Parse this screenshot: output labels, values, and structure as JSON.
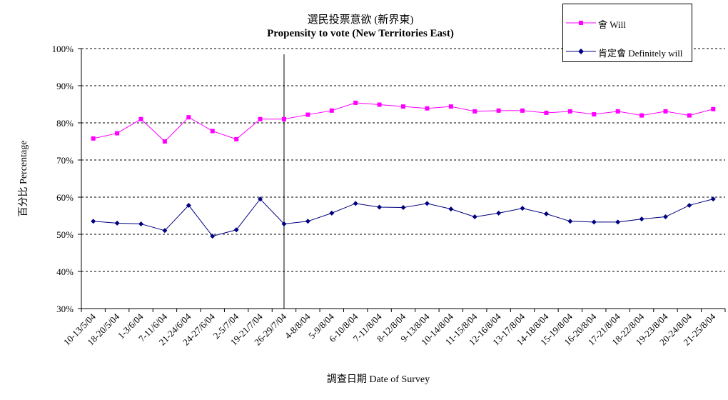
{
  "chart_data": {
    "type": "line",
    "title": "選民投票意欲 (新界東)",
    "subtitle": "Propensity to vote (New Territories East)",
    "xlabel": "調查日期 Date of Survey",
    "ylabel": "百分比 Percentage",
    "ylim": [
      30,
      100
    ],
    "yticks": [
      "30%",
      "40%",
      "50%",
      "60%",
      "70%",
      "80%",
      "90%",
      "100%"
    ],
    "grid": "horizontal dashed",
    "legend_position": "top-right",
    "categories": [
      "10-13/5/04",
      "18-20/5/04",
      "1-3/6/04",
      "7-11/6/04",
      "21-24/6/04",
      "24-27/6/04",
      "2-5/7/04",
      "19-21/7/04",
      "26-29/7/04",
      "4-8/8/04",
      "5-9/8/04",
      "6-10/8/04",
      "7-11/8/04",
      "8-12/8/04",
      "9-13/8/04",
      "10-14/8/04",
      "11-15/8/04",
      "12-16/8/04",
      "13-17/8/04",
      "14-18/8/04",
      "15-19/8/04",
      "16-20/8/04",
      "17-21/8/04",
      "18-22/8/04",
      "19-23/8/04",
      "20-24/8/04",
      "21-25/8/04"
    ],
    "series": [
      {
        "name": "會 Will",
        "color": "#ff00ff",
        "marker": "square",
        "values": [
          75.8,
          77.2,
          81.0,
          75.0,
          81.5,
          77.8,
          75.6,
          81.0,
          81.0,
          82.2,
          83.3,
          85.4,
          84.9,
          84.4,
          83.9,
          84.4,
          83.1,
          83.3,
          83.3,
          82.7,
          83.1,
          82.3,
          83.1,
          82.0,
          83.1,
          82.0,
          83.7
        ]
      },
      {
        "name": "肯定會 Definitely will",
        "color": "#000080",
        "marker": "diamond",
        "values": [
          53.5,
          53.0,
          52.8,
          51.0,
          57.8,
          49.5,
          51.2,
          59.5,
          52.8,
          53.5,
          55.7,
          58.3,
          57.3,
          57.2,
          58.3,
          56.8,
          54.7,
          55.7,
          57.0,
          55.5,
          53.5,
          53.3,
          53.3,
          54.1,
          54.7,
          57.8,
          59.5
        ]
      }
    ],
    "reference_line_after_category": "26-29/7/04"
  }
}
